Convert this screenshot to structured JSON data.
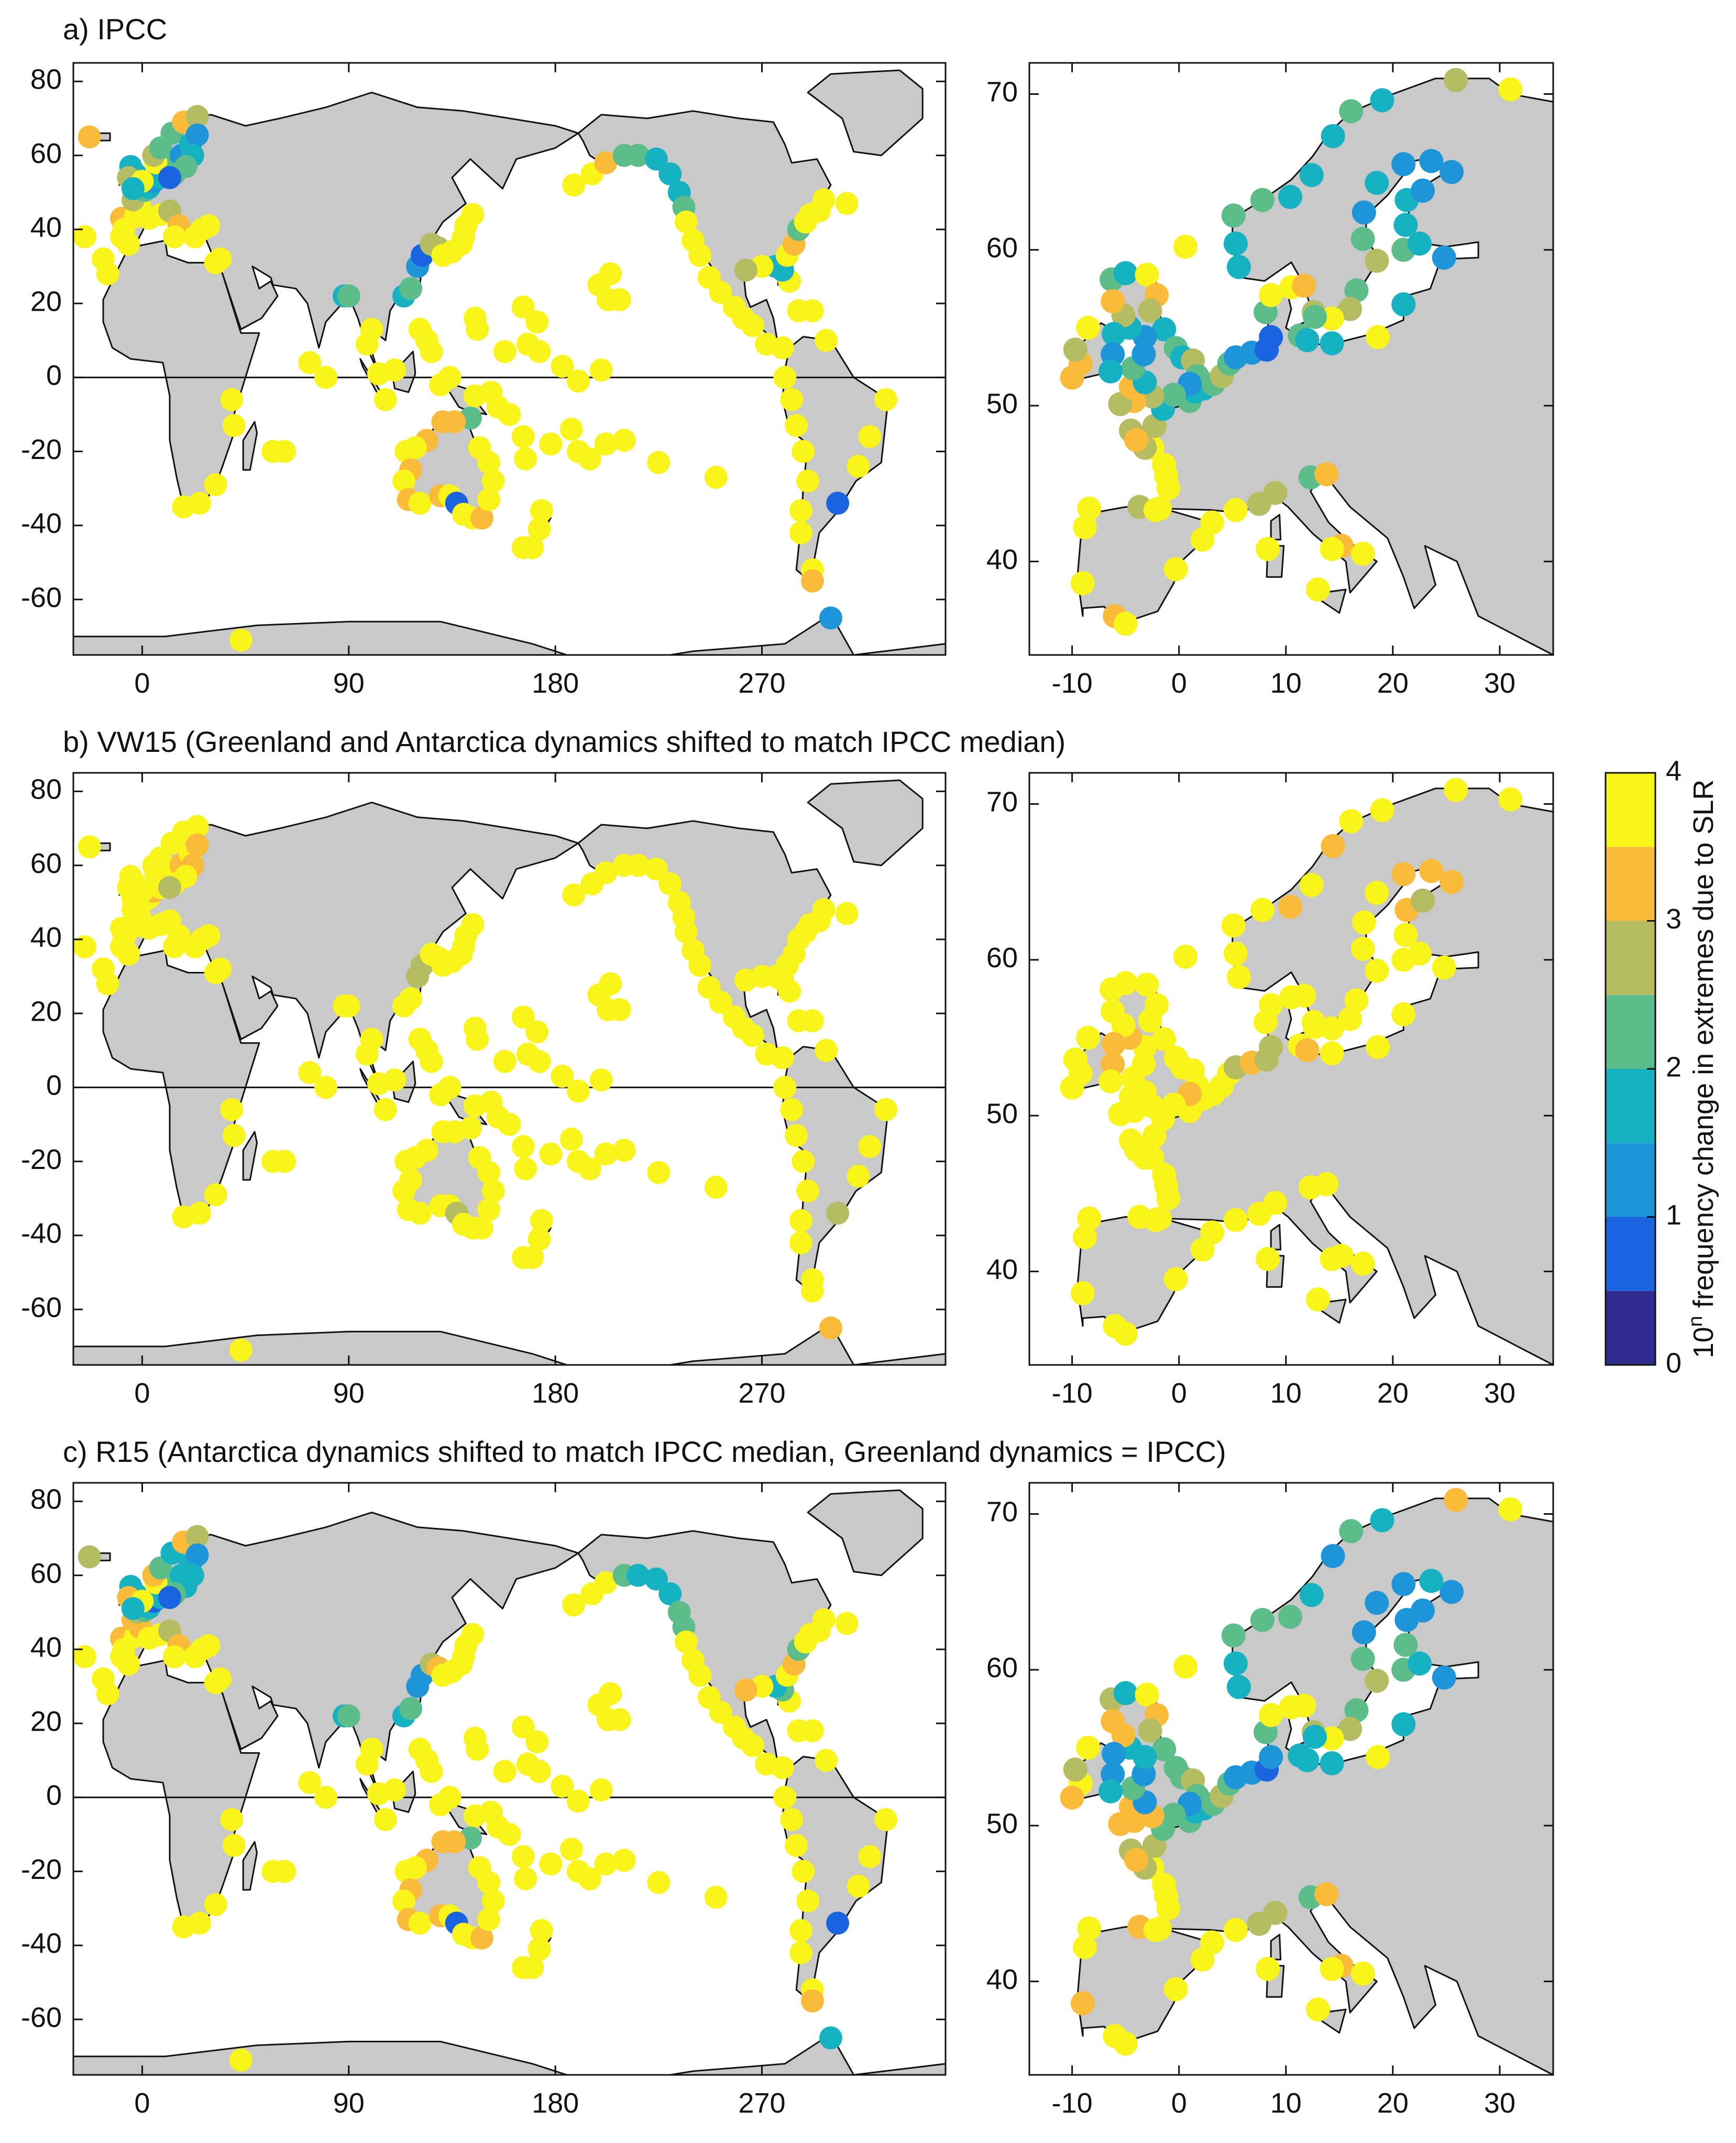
{
  "panels": [
    {
      "id": "a",
      "title": "a) IPCC"
    },
    {
      "id": "b",
      "title": "b) VW15 (Greenland and Antarctica dynamics shifted to match IPCC median)"
    },
    {
      "id": "c",
      "title": "c) R15 (Antarctica dynamics shifted to match IPCC median, Greenland dynamics = IPCC)"
    }
  ],
  "world_axes": {
    "xticks": [
      0,
      90,
      180,
      270
    ],
    "yticks": [
      80,
      60,
      40,
      20,
      0,
      -20,
      -40,
      -60
    ],
    "xlim": [
      -30,
      350
    ],
    "ylim": [
      -75,
      85
    ],
    "equator": 0
  },
  "europe_axes": {
    "xticks": [
      -10,
      0,
      10,
      20,
      30
    ],
    "yticks": [
      70,
      60,
      50,
      40
    ],
    "xlim": [
      -14,
      35
    ],
    "ylim": [
      34,
      72
    ]
  },
  "colorbar": {
    "label_base": "10",
    "label_sup": "n",
    "label_rest": " frequency change in extremes due to SLR",
    "ticks": [
      0,
      1,
      2,
      3,
      4
    ],
    "range": [
      0,
      4
    ],
    "bins": [
      {
        "from": 0.0,
        "to": 0.5,
        "color": "#2e2c8f"
      },
      {
        "from": 0.5,
        "to": 1.0,
        "color": "#1a64e0"
      },
      {
        "from": 1.0,
        "to": 1.5,
        "color": "#1e95d9"
      },
      {
        "from": 1.5,
        "to": 2.0,
        "color": "#16b2c2"
      },
      {
        "from": 2.0,
        "to": 2.5,
        "color": "#5cbd8b"
      },
      {
        "from": 2.5,
        "to": 3.0,
        "color": "#b5bc62"
      },
      {
        "from": 3.0,
        "to": 3.5,
        "color": "#fbbb3a"
      },
      {
        "from": 3.5,
        "to": 4.0,
        "color": "#f9f41a"
      }
    ]
  }
}
